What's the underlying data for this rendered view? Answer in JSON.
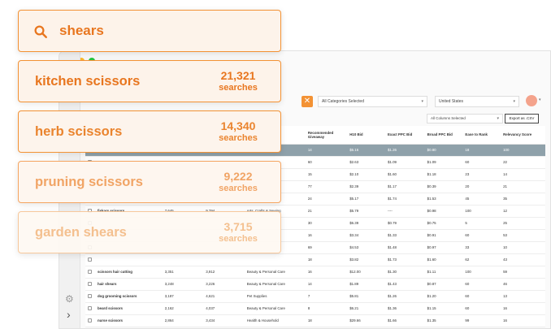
{
  "search": {
    "query": "shears"
  },
  "suggestions": [
    {
      "name": "kitchen scissors",
      "count": "21,321",
      "unit": "searches"
    },
    {
      "name": "herb scissors",
      "count": "14,340",
      "unit": "searches"
    },
    {
      "name": "pruning scissors",
      "count": "9,222",
      "unit": "searches"
    },
    {
      "name": "garden shears",
      "count": "3,715",
      "unit": "searches"
    }
  ],
  "filters": {
    "category": "All Categories Selected",
    "country": "United States",
    "columns": "All Columns Selected",
    "export_label": "Export as .CSV"
  },
  "table": {
    "headers": [
      "Recommended Giveaway",
      "H10 Bid",
      "Exact PPC Bid",
      "Broad PPC Bid",
      "Ease to Rank",
      "Relevancy Score"
    ],
    "rows": [
      {
        "keyword": "",
        "search_vol": "",
        "competing": "",
        "category": "",
        "giveaway": "14",
        "h10": "$5.16",
        "exact": "$1.26",
        "broad": "$0.80",
        "ease": "18",
        "relevancy": "100"
      },
      {
        "keyword": "",
        "search_vol": "",
        "competing": "",
        "category": "",
        "giveaway": "60",
        "h10": "$2.63",
        "exact": "$1.09",
        "broad": "$1.09",
        "ease": "60",
        "relevancy": "22"
      },
      {
        "keyword": "",
        "search_vol": "",
        "competing": "",
        "category": "",
        "giveaway": "15",
        "h10": "$2.10",
        "exact": "$1.60",
        "broad": "$1.18",
        "ease": "23",
        "relevancy": "14"
      },
      {
        "keyword": "",
        "search_vol": "",
        "competing": "",
        "category": "",
        "giveaway": "77",
        "h10": "$2.39",
        "exact": "$1.17",
        "broad": "$0.39",
        "ease": "20",
        "relevancy": "21"
      },
      {
        "keyword": "",
        "search_vol": "",
        "competing": "",
        "category": "",
        "giveaway": "24",
        "h10": "$5.17",
        "exact": "$1.74",
        "broad": "$1.53",
        "ease": "45",
        "relevancy": "35"
      },
      {
        "keyword": "fiskars scissors",
        "search_vol": "7,645",
        "competing": "9,794",
        "category": "Arts, Crafts & Sewing",
        "giveaway": "21",
        "h10": "$5.79",
        "exact": "----",
        "broad": "$0.98",
        "ease": "100",
        "relevancy": "12"
      },
      {
        "keyword": "",
        "search_vol": "",
        "competing": "",
        "category": "",
        "giveaway": "30",
        "h10": "$6.39",
        "exact": "$0.79",
        "broad": "$0.75",
        "ease": "5",
        "relevancy": "25"
      },
      {
        "keyword": "",
        "search_vol": "",
        "competing": "",
        "category": "",
        "giveaway": "16",
        "h10": "$3.34",
        "exact": "$1.33",
        "broad": "$0.91",
        "ease": "60",
        "relevancy": "53"
      },
      {
        "keyword": "",
        "search_vol": "",
        "competing": "",
        "category": "",
        "giveaway": "69",
        "h10": "$4.53",
        "exact": "$1.48",
        "broad": "$0.97",
        "ease": "33",
        "relevancy": "10"
      },
      {
        "keyword": "",
        "search_vol": "",
        "competing": "",
        "category": "",
        "giveaway": "18",
        "h10": "$3.82",
        "exact": "$1.73",
        "broad": "$1.60",
        "ease": "62",
        "relevancy": "43"
      },
      {
        "keyword": "scissors hair cutting",
        "search_vol": "3,351",
        "competing": "3,912",
        "category": "Beauty & Personal Care",
        "giveaway": "16",
        "h10": "$12.00",
        "exact": "$1.30",
        "broad": "$1.11",
        "ease": "100",
        "relevancy": "59"
      },
      {
        "keyword": "hair shears",
        "search_vol": "3,248",
        "competing": "3,226",
        "category": "Beauty & Personal Care",
        "giveaway": "14",
        "h10": "$1.89",
        "exact": "$1.43",
        "broad": "$0.87",
        "ease": "60",
        "relevancy": "46"
      },
      {
        "keyword": "dog grooming scissors",
        "search_vol": "3,187",
        "competing": "4,621",
        "category": "Pet Supplies",
        "giveaway": "7",
        "h10": "$5.81",
        "exact": "$1.26",
        "broad": "$1.20",
        "ease": "60",
        "relevancy": "13"
      },
      {
        "keyword": "beard scissors",
        "search_vol": "2,162",
        "competing": "4,037",
        "category": "Beauty & Personal Care",
        "giveaway": "8",
        "h10": "$6.21",
        "exact": "$1.36",
        "broad": "$1.15",
        "ease": "60",
        "relevancy": "16"
      },
      {
        "keyword": "nurse scissors",
        "search_vol": "2,864",
        "competing": "3,434",
        "category": "Health & Household",
        "giveaway": "18",
        "h10": "$29.66",
        "exact": "$1.66",
        "broad": "$1.35",
        "ease": "99",
        "relevancy": "16"
      }
    ]
  },
  "colors": {
    "accent": "#f39234",
    "highlight_row": "#8fa1aa"
  },
  "icons": {
    "search": "search-icon",
    "settings": "gear-icon",
    "expand": "chevron-right-icon"
  }
}
